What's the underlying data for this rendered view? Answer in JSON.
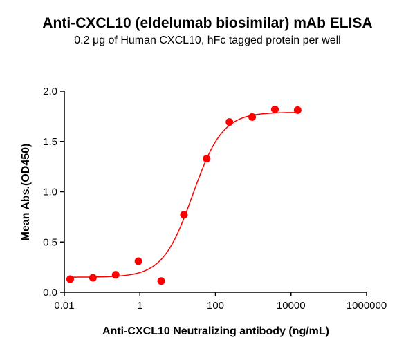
{
  "chart_data": {
    "type": "scatter",
    "title": "Anti-CXCL10 (eldelumab biosimilar) mAb ELISA",
    "subtitle": "0.2 μg of Human CXCL10, hFc tagged protein per well",
    "xlabel": "Anti-CXCL10 Neutralizing antibody (ng/mL)",
    "ylabel": "Mean Abs.(OD450)",
    "x_scale": "log",
    "xlim": [
      0.01,
      1000000
    ],
    "ylim": [
      0,
      2.0
    ],
    "x_ticks": [
      "0.01",
      "1",
      "100",
      "10000",
      "1000000"
    ],
    "y_ticks": [
      "0.0",
      "0.5",
      "1.0",
      "1.5",
      "2.0"
    ],
    "grid": false,
    "legend": "none",
    "series": [
      {
        "color": "#ff0000",
        "marker": "circle",
        "x": [
          0.0143,
          0.0572,
          0.2289,
          0.9155,
          3.662,
          14.65,
          58.59,
          234.4,
          937.5,
          3750,
          15000
        ],
        "y": [
          0.131,
          0.144,
          0.174,
          0.309,
          0.112,
          0.772,
          1.329,
          1.693,
          1.743,
          1.819,
          1.812
        ],
        "fit": {
          "model": "4PL",
          "bottom": 0.15,
          "top": 1.79,
          "ec50": 25,
          "hill": 1.1
        }
      }
    ]
  }
}
